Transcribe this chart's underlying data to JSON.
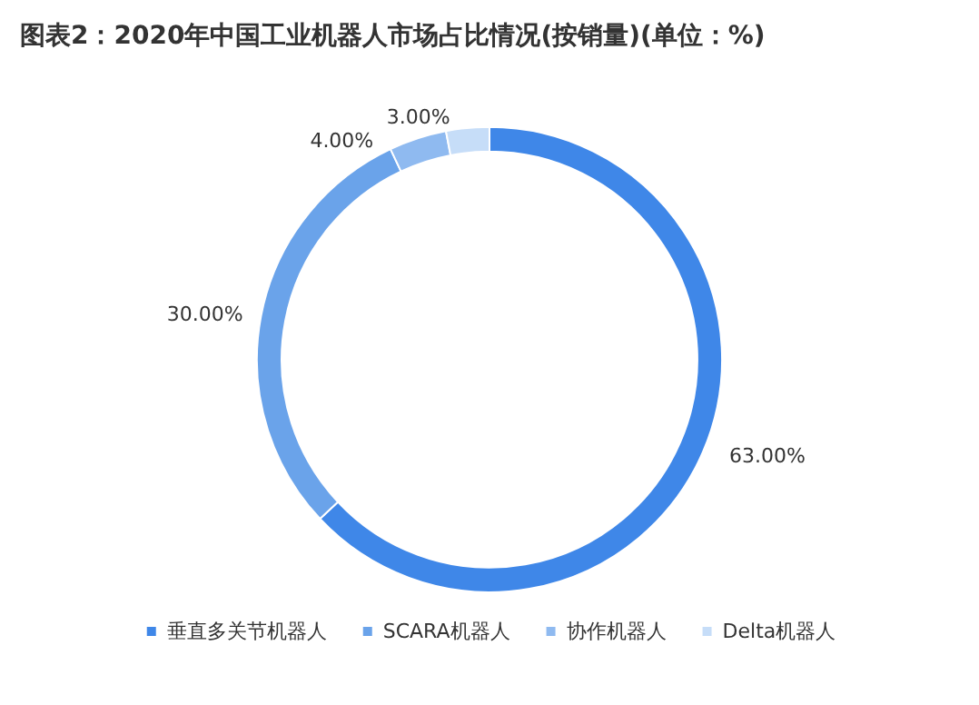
{
  "chart_data": {
    "type": "donut",
    "title": "图表2：2020年中国工业机器人市场占比情况(按销量)(单位：%)",
    "categories": [
      "垂直多关节机器人",
      "SCARA机器人",
      "协作机器人",
      "Delta机器人"
    ],
    "values": [
      63,
      30,
      4,
      3
    ],
    "colors": [
      "#3f87e8",
      "#6aa3ea",
      "#8fbaf0",
      "#c6ddf8"
    ],
    "value_labels": [
      "63.00%",
      "30.00%",
      "4.00%",
      "3.00%"
    ],
    "legend": "bottom"
  }
}
